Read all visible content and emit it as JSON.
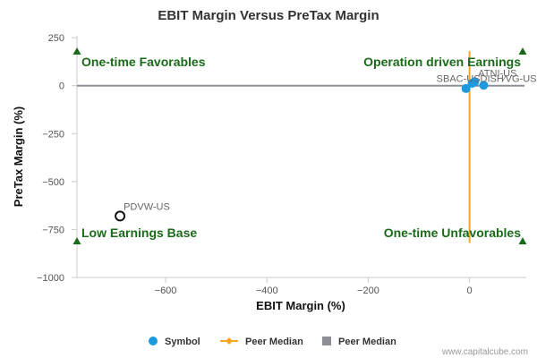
{
  "chart_data": {
    "type": "scatter",
    "title": "EBIT Margin Versus PreTax Margin",
    "xlabel": "EBIT Margin (%)",
    "ylabel": "PreTax Margin (%)",
    "xlim": [
      -775,
      112
    ],
    "ylim": [
      -1000,
      260
    ],
    "x_ticks": [
      -600,
      -400,
      -200,
      0
    ],
    "y_ticks": [
      250,
      0,
      -250,
      -500,
      -750,
      -1000
    ],
    "x_tick_labels": [
      "−600",
      "−400",
      "−200",
      "0"
    ],
    "y_tick_labels": [
      "250",
      "0",
      "−250",
      "−500",
      "−750",
      "−1000"
    ],
    "grid": false,
    "legend_position": "bottom",
    "points": [
      {
        "label": "PDVW-US",
        "x": -690,
        "y": -680,
        "style": "hollow"
      },
      {
        "label": "SBAC-US",
        "x": -7,
        "y": -15,
        "style": "filled"
      },
      {
        "label": "DISH-US",
        "x": 5,
        "y": 12,
        "style": "filled"
      },
      {
        "label": "ATNI-US",
        "x": 10,
        "y": 20,
        "style": "filled"
      },
      {
        "label": "VG-US",
        "x": 28,
        "y": 2,
        "style": "filled"
      }
    ],
    "point_label_text": "SBAC-USDISH∕VG-US",
    "peer_median_vertical": {
      "x": 0,
      "y_range": [
        -820,
        180
      ]
    },
    "peer_median_horizontal": {
      "y": 0
    },
    "quadrants": {
      "top_left": "One-time Favorables",
      "top_right": "Operation driven Earnings",
      "bottom_left": "Low Earnings Base",
      "bottom_right": "One-time Unfavorables"
    },
    "legend": [
      {
        "label": "Symbol",
        "kind": "circle",
        "color": "#1e9be0"
      },
      {
        "label": "Peer Median",
        "kind": "line-diamond",
        "color": "#f5a623"
      },
      {
        "label": "Peer Median",
        "kind": "square",
        "color": "#8d8f96"
      }
    ],
    "colors": {
      "symbol": "#1e9be0",
      "peer_median_vertical": "#f5a623",
      "peer_median_horizontal": "#8d8f96",
      "quadrant_text": "#1a6b1a",
      "quadrant_marker": "#1a6b1a",
      "hollow_point_stroke": "#111111"
    }
  },
  "credit": "www.capitalcube.com"
}
